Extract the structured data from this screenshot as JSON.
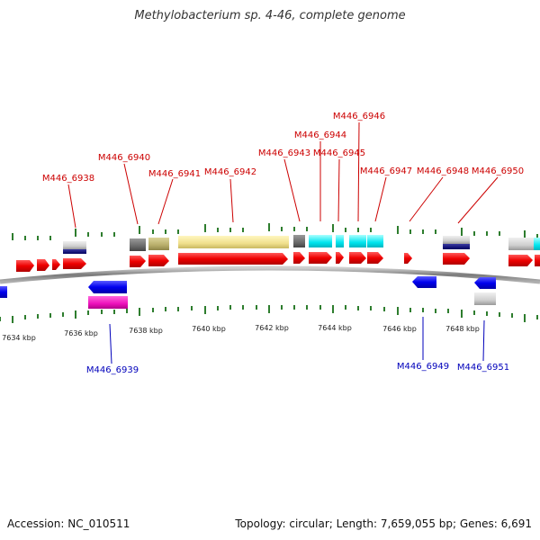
{
  "title": "Methylobacterium sp. 4-46, complete genome",
  "footer": {
    "accession": "Accession: NC_010511",
    "summary": "Topology: circular; Length: 7,659,055 bp; Genes: 6,691"
  },
  "colors": {
    "forward_gene": "#ee0000",
    "reverse_gene": "#0000ee",
    "forward_label": "#cc0000",
    "reverse_label": "#0000bb",
    "tick": "#2e7d2e",
    "backbone": "#888888"
  },
  "kbp_labels": [
    "7634 kbp",
    "7636 kbp",
    "7638 kbp",
    "7640 kbp",
    "7642 kbp",
    "7644 kbp",
    "7646 kbp",
    "7648 kbp"
  ],
  "gene_labels": [
    {
      "text": "M446_6938",
      "strand": "forward"
    },
    {
      "text": "M446_6940",
      "strand": "forward"
    },
    {
      "text": "M446_6941",
      "strand": "forward"
    },
    {
      "text": "M446_6942",
      "strand": "forward"
    },
    {
      "text": "M446_6943",
      "strand": "forward"
    },
    {
      "text": "M446_6944",
      "strand": "forward"
    },
    {
      "text": "M446_6945",
      "strand": "forward"
    },
    {
      "text": "M446_6946",
      "strand": "forward"
    },
    {
      "text": "M446_6947",
      "strand": "forward"
    },
    {
      "text": "M446_6948",
      "strand": "forward"
    },
    {
      "text": "M446_6950",
      "strand": "forward"
    },
    {
      "text": "M446_6939",
      "strand": "reverse"
    },
    {
      "text": "M446_6949",
      "strand": "reverse"
    },
    {
      "text": "M446_6951",
      "strand": "reverse"
    }
  ]
}
